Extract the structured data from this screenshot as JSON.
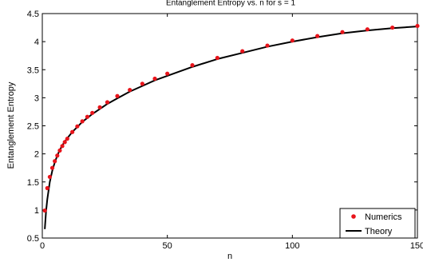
{
  "chart_data": {
    "type": "line",
    "title": "Entanglement Entropy vs. n for s = 1",
    "xlabel": "n",
    "ylabel": "Entanglement Entropy",
    "xlim": [
      0,
      150
    ],
    "ylim": [
      0.5,
      4.5
    ],
    "xticks": [
      0,
      50,
      100,
      150
    ],
    "yticks": [
      0.5,
      1,
      1.5,
      2,
      2.5,
      3,
      3.5,
      4,
      4.5
    ],
    "xtick_labels": [
      "0",
      "50",
      "100",
      "150"
    ],
    "ytick_labels": [
      "0.5",
      "1",
      "1.5",
      "2",
      "2.5",
      "3",
      "3.5",
      "4",
      "4.5"
    ],
    "grid": false,
    "legend_position": "bottom-right",
    "series": [
      {
        "name": "Numerics",
        "style": "markers",
        "color": "#e8141b",
        "x": [
          1,
          2,
          3,
          4,
          5,
          6,
          7,
          8,
          9,
          10,
          12,
          14,
          16,
          18,
          20,
          23,
          26,
          30,
          35,
          40,
          45,
          50,
          60,
          70,
          80,
          90,
          100,
          110,
          120,
          130,
          140,
          150
        ],
        "y": [
          0.99,
          1.39,
          1.59,
          1.75,
          1.87,
          1.97,
          2.06,
          2.14,
          2.21,
          2.27,
          2.39,
          2.49,
          2.58,
          2.66,
          2.73,
          2.83,
          2.92,
          3.03,
          3.14,
          3.25,
          3.34,
          3.43,
          3.58,
          3.71,
          3.83,
          3.93,
          4.02,
          4.1,
          4.17,
          4.22,
          4.25,
          4.28
        ]
      },
      {
        "name": "Theory",
        "style": "line",
        "color": "#000000",
        "x": [
          1,
          1.5,
          2,
          3,
          4,
          5,
          6,
          7,
          8,
          9,
          10,
          12,
          14,
          16,
          18,
          20,
          23,
          26,
          30,
          35,
          40,
          45,
          50,
          60,
          70,
          80,
          90,
          100,
          110,
          120,
          130,
          140,
          150
        ],
        "y": [
          0.66,
          0.98,
          1.19,
          1.5,
          1.7,
          1.85,
          1.97,
          2.07,
          2.15,
          2.22,
          2.28,
          2.39,
          2.48,
          2.57,
          2.64,
          2.71,
          2.8,
          2.89,
          2.99,
          3.11,
          3.21,
          3.31,
          3.39,
          3.55,
          3.69,
          3.8,
          3.91,
          4.0,
          4.08,
          4.15,
          4.2,
          4.24,
          4.27
        ]
      }
    ]
  }
}
